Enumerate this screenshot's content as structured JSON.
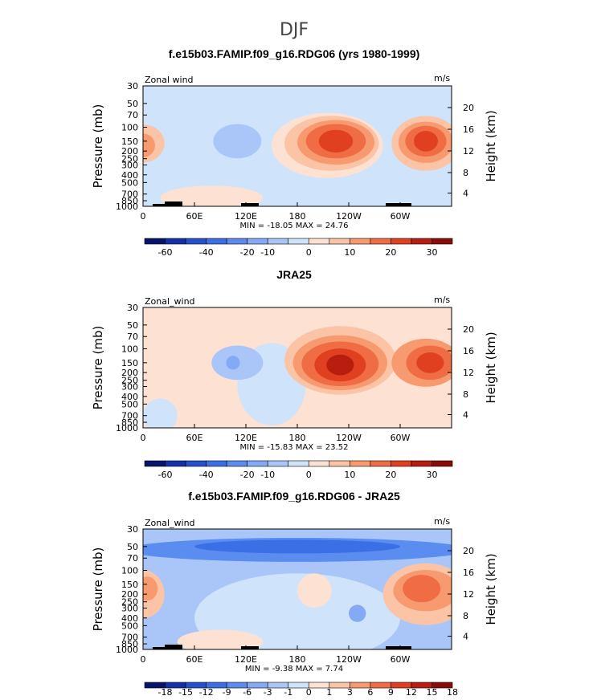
{
  "figure": {
    "title": "DJF"
  },
  "colors": {
    "full_scale": [
      "#08146b",
      "#1230a8",
      "#2552cc",
      "#3b6fe6",
      "#5b8cf0",
      "#84aaf5",
      "#aac6f8",
      "#cfe3fb",
      "#fde2d4",
      "#fbc4a6",
      "#f79a70",
      "#f06c45",
      "#e0401f",
      "#b81d10",
      "#8a0c06"
    ],
    "diff_scale": [
      "#08146b",
      "#1230a8",
      "#2552cc",
      "#3b6fe6",
      "#5b8cf0",
      "#84aaf5",
      "#aac6f8",
      "#cfe3fb",
      "#fde2d4",
      "#fbc4a6",
      "#f79a70",
      "#f06c45",
      "#e0401f",
      "#b81d10",
      "#8a0c06"
    ]
  },
  "chart_data": [
    {
      "type": "heatmap",
      "title": "f.e15b03.FAMIP.f09_g16.RDG06 (yrs 1980-1999)",
      "left_label": "Zonal wind",
      "units": "m/s",
      "ylabel": "Pressure (mb)",
      "ylabel_right": "Height (km)",
      "pressure_ticks": [
        "30",
        "50",
        "70",
        "100",
        "150",
        "200",
        "250",
        "300",
        "400",
        "500",
        "700",
        "850",
        "1000"
      ],
      "height_ticks": [
        "20",
        "16",
        "12",
        "8",
        "4"
      ],
      "x_ticks": [
        "0",
        "60E",
        "120E",
        "180",
        "120W",
        "60W"
      ],
      "stats": "MIN = -18.05   MAX =  24.76",
      "colorbar_labels": [
        "-60",
        "-40",
        "-20",
        "-10",
        "0",
        "10",
        "20",
        "30"
      ],
      "xlim": [
        0,
        360
      ],
      "ylim_mb": [
        1000,
        30
      ]
    },
    {
      "type": "heatmap",
      "title": "JRA25",
      "left_label": "Zonal_wind",
      "units": "m/s",
      "ylabel": "Pressure (mb)",
      "ylabel_right": "Height (km)",
      "pressure_ticks": [
        "30",
        "50",
        "70",
        "100",
        "150",
        "200",
        "250",
        "300",
        "400",
        "500",
        "700",
        "850",
        "1000"
      ],
      "height_ticks": [
        "20",
        "16",
        "12",
        "8",
        "4"
      ],
      "x_ticks": [
        "0",
        "60E",
        "120E",
        "180",
        "120W",
        "60W"
      ],
      "stats": "MIN = -15.83   MAX =  23.52",
      "colorbar_labels": [
        "-60",
        "-40",
        "-20",
        "-10",
        "0",
        "10",
        "20",
        "30"
      ],
      "xlim": [
        0,
        360
      ],
      "ylim_mb": [
        1000,
        30
      ]
    },
    {
      "type": "heatmap",
      "title": "f.e15b03.FAMIP.f09_g16.RDG06 - JRA25",
      "left_label": "Zonal_wind",
      "units": "m/s",
      "ylabel": "Pressure (mb)",
      "ylabel_right": "Height (km)",
      "pressure_ticks": [
        "30",
        "50",
        "70",
        "100",
        "150",
        "200",
        "250",
        "300",
        "400",
        "500",
        "700",
        "850",
        "1000"
      ],
      "height_ticks": [
        "20",
        "16",
        "12",
        "8",
        "4"
      ],
      "x_ticks": [
        "0",
        "60E",
        "120E",
        "180",
        "120W",
        "60W"
      ],
      "stats": "MIN =  -9.38   MAX =   7.74",
      "colorbar_labels": [
        "-18",
        "-15",
        "-12",
        "-9",
        "-6",
        "-3",
        "-1",
        "0",
        "1",
        "3",
        "6",
        "9",
        "12",
        "15",
        "18"
      ],
      "xlim": [
        0,
        360
      ],
      "ylim_mb": [
        1000,
        30
      ]
    }
  ]
}
